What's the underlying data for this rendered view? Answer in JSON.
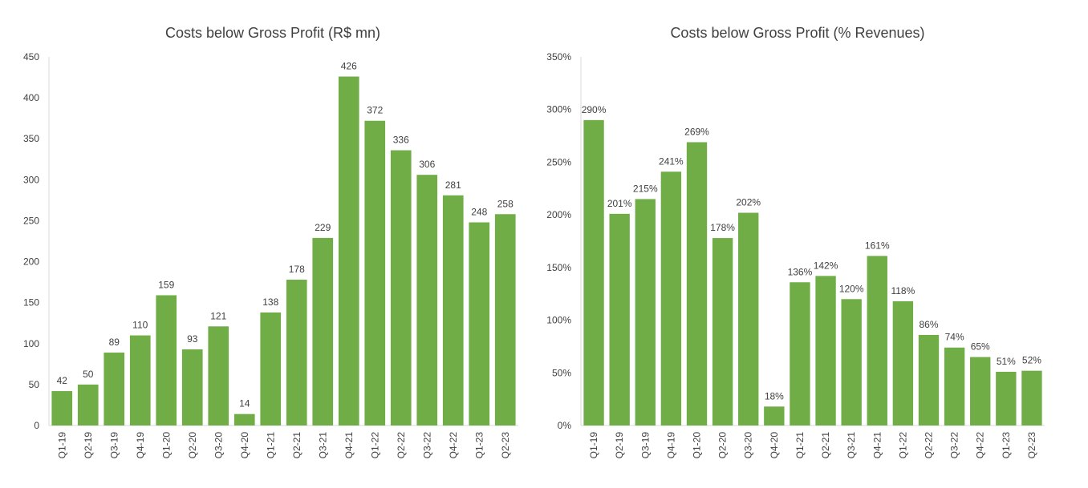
{
  "chart_data": [
    {
      "type": "bar",
      "title": "Costs below Gross Profit (R$ mn)",
      "xlabel": "",
      "ylabel": "",
      "ylim": [
        0,
        450
      ],
      "y_ticks": [
        0,
        50,
        100,
        150,
        200,
        250,
        300,
        350,
        400,
        450
      ],
      "y_tick_labels": [
        "0",
        "50",
        "100",
        "150",
        "200",
        "250",
        "300",
        "350",
        "400",
        "450"
      ],
      "categories": [
        "Q1-19",
        "Q2-19",
        "Q3-19",
        "Q4-19",
        "Q1-20",
        "Q2-20",
        "Q3-20",
        "Q4-20",
        "Q1-21",
        "Q2-21",
        "Q3-21",
        "Q4-21",
        "Q1-22",
        "Q2-22",
        "Q3-22",
        "Q4-22",
        "Q1-23",
        "Q2-23"
      ],
      "values": [
        42,
        50,
        89,
        110,
        159,
        93,
        121,
        14,
        138,
        178,
        229,
        426,
        372,
        336,
        306,
        281,
        248,
        258
      ],
      "value_labels": [
        "42",
        "50",
        "89",
        "110",
        "159",
        "93",
        "121",
        "14",
        "138",
        "178",
        "229",
        "426",
        "372",
        "336",
        "306",
        "281",
        "248",
        "258"
      ],
      "bar_color": "#70ad47",
      "grid": false
    },
    {
      "type": "bar",
      "title": "Costs below Gross Profit (% Revenues)",
      "xlabel": "",
      "ylabel": "",
      "ylim": [
        0,
        350
      ],
      "y_ticks": [
        0,
        50,
        100,
        150,
        200,
        250,
        300,
        350
      ],
      "y_tick_labels": [
        "0%",
        "50%",
        "100%",
        "150%",
        "200%",
        "250%",
        "300%",
        "350%"
      ],
      "categories": [
        "Q1-19",
        "Q2-19",
        "Q3-19",
        "Q4-19",
        "Q1-20",
        "Q2-20",
        "Q3-20",
        "Q4-20",
        "Q1-21",
        "Q2-21",
        "Q3-21",
        "Q4-21",
        "Q1-22",
        "Q2-22",
        "Q3-22",
        "Q4-22",
        "Q1-23",
        "Q2-23"
      ],
      "values": [
        290,
        201,
        215,
        241,
        269,
        178,
        202,
        18,
        136,
        142,
        120,
        161,
        118,
        86,
        74,
        65,
        51,
        52
      ],
      "value_labels": [
        "290%",
        "201%",
        "215%",
        "241%",
        "269%",
        "178%",
        "202%",
        "18%",
        "136%",
        "142%",
        "120%",
        "161%",
        "118%",
        "86%",
        "74%",
        "65%",
        "51%",
        "52%"
      ],
      "bar_color": "#70ad47",
      "grid": false
    }
  ]
}
